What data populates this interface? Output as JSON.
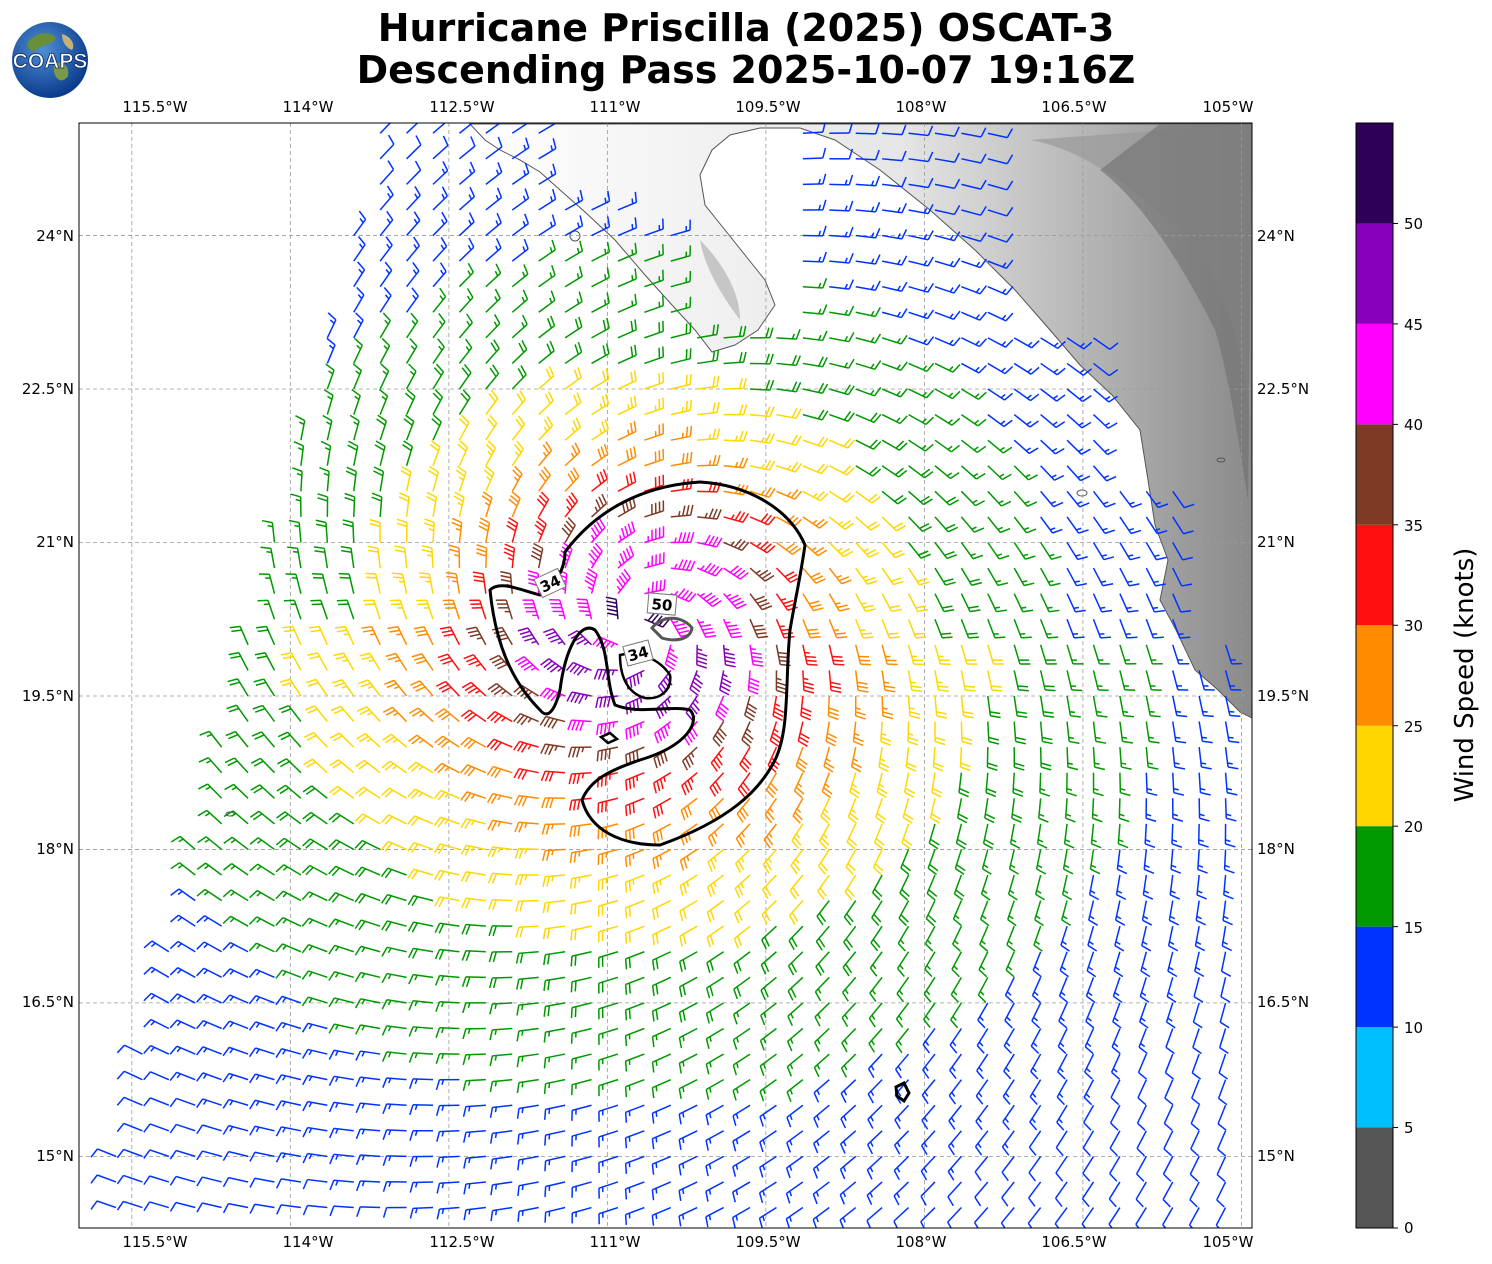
{
  "title": {
    "line1": "Hurricane Priscilla (2025) OSCAT-3",
    "line2": "Descending Pass 2025-10-07 19:16Z"
  },
  "logo": {
    "text": "COAPS",
    "icon": "globe-icon"
  },
  "map": {
    "lon_range": [
      -116.0,
      -104.9
    ],
    "lat_range": [
      14.3,
      25.1
    ],
    "grid": true,
    "lon_ticks": [
      "115.5°W",
      "114°W",
      "112.5°W",
      "111°W",
      "109.5°W",
      "108°W",
      "106.5°W",
      "105°W"
    ],
    "lat_ticks": [
      "15°N",
      "16.5°N",
      "18°N",
      "19.5°N",
      "21°N",
      "22.5°N",
      "24°N"
    ],
    "storm_center": {
      "lon": -110.7,
      "lat": 20.2
    },
    "contour_labels": [
      "34",
      "50",
      "34"
    ]
  },
  "colorbar": {
    "title": "Wind Speed (knots)",
    "tick_labels": [
      "0",
      "5",
      "10",
      "15",
      "20",
      "25",
      "30",
      "35",
      "40",
      "45",
      "50"
    ],
    "bins": [
      {
        "min": 0,
        "max": 5,
        "color": "#555555"
      },
      {
        "min": 5,
        "max": 10,
        "color": "#00bfff"
      },
      {
        "min": 10,
        "max": 15,
        "color": "#0033ff"
      },
      {
        "min": 15,
        "max": 20,
        "color": "#009900"
      },
      {
        "min": 20,
        "max": 25,
        "color": "#ffd700"
      },
      {
        "min": 25,
        "max": 30,
        "color": "#ff8c00"
      },
      {
        "min": 30,
        "max": 35,
        "color": "#ff0f0f"
      },
      {
        "min": 35,
        "max": 40,
        "color": "#7f3a26"
      },
      {
        "min": 40,
        "max": 45,
        "color": "#ff00ff"
      },
      {
        "min": 45,
        "max": 50,
        "color": "#8800bb"
      },
      {
        "min": 50,
        "max": 55,
        "color": "#2e0058"
      }
    ]
  }
}
